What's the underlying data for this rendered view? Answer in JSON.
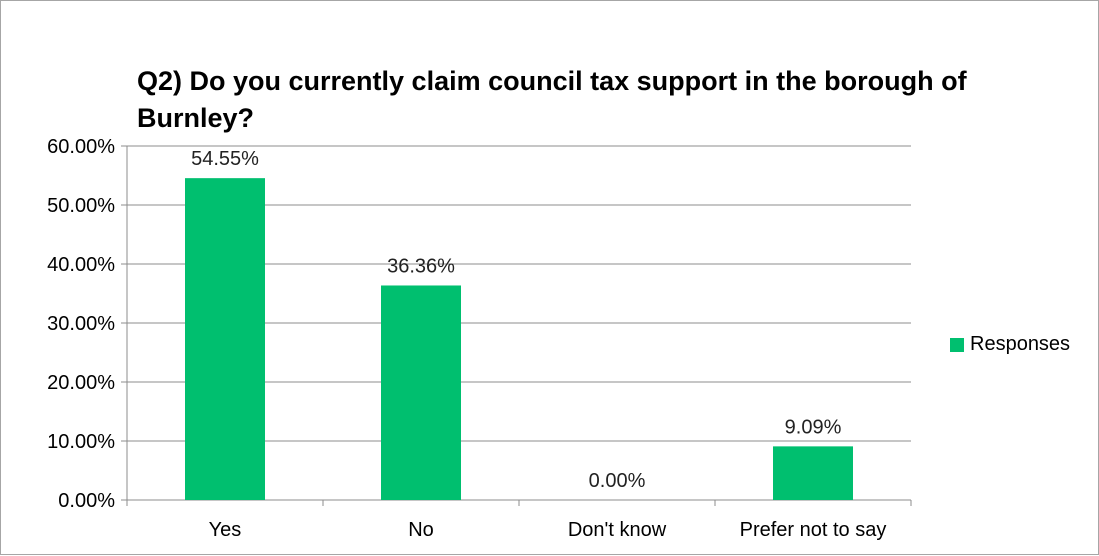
{
  "chart_data": {
    "type": "bar",
    "title": "Q2) Do you currently claim council tax support in the borough of Burnley?",
    "categories": [
      "Yes",
      "No",
      "Don't know",
      "Prefer not to say"
    ],
    "series": [
      {
        "name": "Responses",
        "values": [
          54.55,
          36.36,
          0.0,
          9.09
        ],
        "labels": [
          "54.55%",
          "36.36%",
          "0.00%",
          "9.09%"
        ],
        "color": "#00bf6f"
      }
    ],
    "ylim": [
      0,
      60
    ],
    "yticks": [
      0,
      10,
      20,
      30,
      40,
      50,
      60
    ],
    "ytick_labels": [
      "0.00%",
      "10.00%",
      "20.00%",
      "30.00%",
      "40.00%",
      "50.00%",
      "60.00%"
    ],
    "xlabel": "",
    "ylabel": "",
    "grid": true,
    "legend_position": "right"
  }
}
